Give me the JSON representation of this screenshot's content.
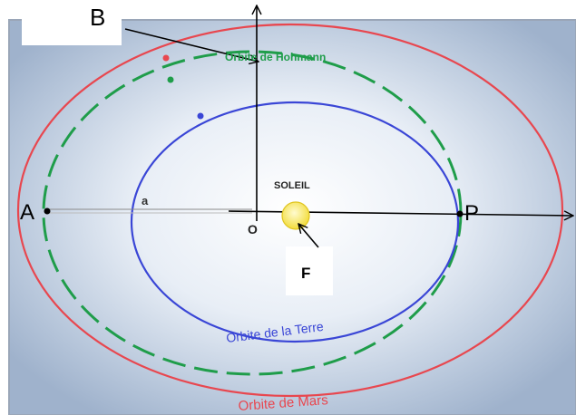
{
  "labels": {
    "b": "B",
    "hohmann": "Orbite de Hohmann",
    "soleil": "SOLEIL",
    "a_point": "A",
    "a_semi_axis": "a",
    "o": "O",
    "p": "P",
    "f": "F",
    "terre": "Orbite de la Terre",
    "mars": "Orbite de Mars"
  },
  "colors": {
    "mars_orbit": "#e8474f",
    "hohmann_orbit": "#1f9d4a",
    "earth_orbit": "#3a46d6",
    "sun": "#f4e24a",
    "axes": "#000000",
    "frame": "#9aa6b8"
  }
}
